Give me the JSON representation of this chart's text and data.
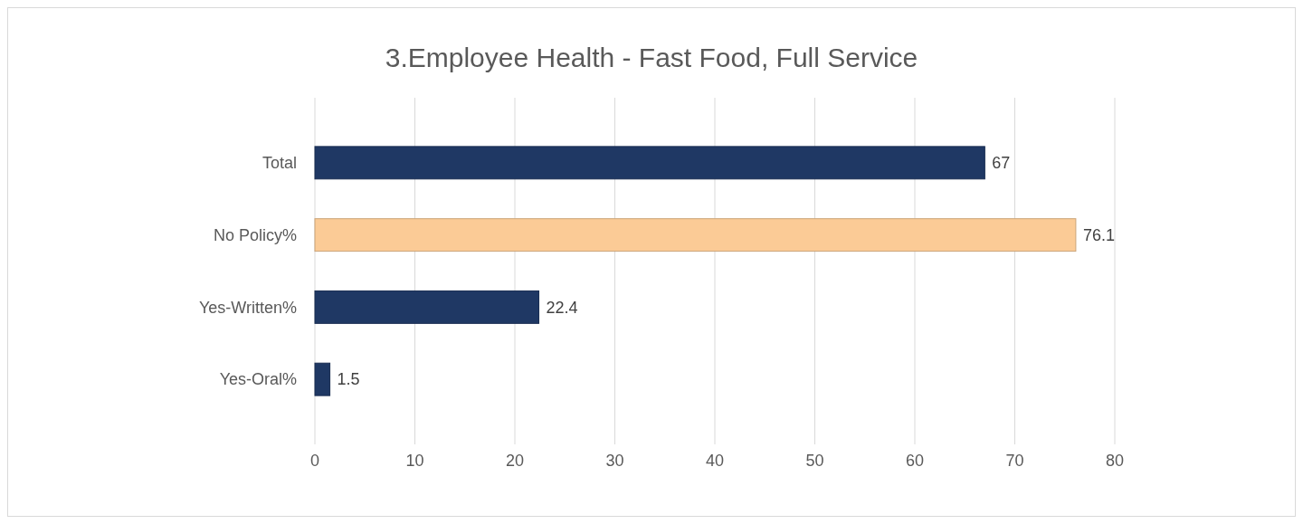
{
  "chart_data": {
    "type": "bar",
    "orientation": "horizontal",
    "title": "3.Employee Health - Fast Food, Full Service",
    "categories": [
      "Total",
      "No Policy%",
      "Yes-Written%",
      "Yes-Oral%"
    ],
    "values": [
      67,
      76.1,
      22.4,
      1.5
    ],
    "colors": [
      "#1f3864",
      "#fbcb96",
      "#1f3864",
      "#1f3864"
    ],
    "xlim": [
      0,
      80
    ],
    "xticks": [
      0,
      10,
      20,
      30,
      40,
      50,
      60,
      70,
      80
    ],
    "grid": "x",
    "data_labels": true
  }
}
